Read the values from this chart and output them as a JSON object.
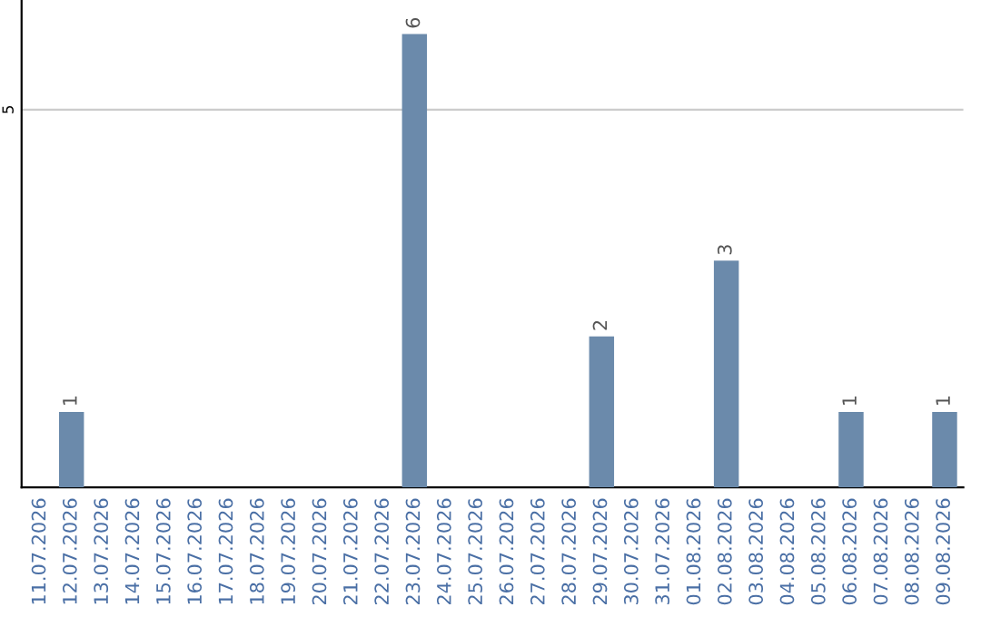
{
  "chart_data": {
    "type": "bar",
    "categories": [
      "11.07.2026",
      "12.07.2026",
      "13.07.2026",
      "14.07.2026",
      "15.07.2026",
      "16.07.2026",
      "17.07.2026",
      "18.07.2026",
      "19.07.2026",
      "20.07.2026",
      "21.07.2026",
      "22.07.2026",
      "23.07.2026",
      "24.07.2026",
      "25.07.2026",
      "26.07.2026",
      "27.07.2026",
      "28.07.2026",
      "29.07.2026",
      "30.07.2026",
      "31.07.2026",
      "01.08.2026",
      "02.08.2026",
      "03.08.2026",
      "04.08.2026",
      "05.08.2026",
      "06.08.2026",
      "07.08.2026",
      "08.08.2026",
      "09.08.2026"
    ],
    "values": [
      0,
      1,
      0,
      0,
      0,
      0,
      0,
      0,
      0,
      0,
      0,
      0,
      6,
      0,
      0,
      0,
      0,
      0,
      2,
      0,
      0,
      0,
      3,
      0,
      0,
      0,
      1,
      0,
      0,
      1
    ],
    "value_labels": [
      null,
      "1",
      null,
      null,
      null,
      null,
      null,
      null,
      null,
      null,
      null,
      null,
      "6",
      null,
      null,
      null,
      null,
      null,
      "2",
      null,
      null,
      null,
      "3",
      null,
      null,
      null,
      "1",
      null,
      null,
      "1"
    ],
    "color": "#6b8aab",
    "ylim": [
      0,
      6.45
    ],
    "yticks": [
      5
    ],
    "grid": "y"
  }
}
